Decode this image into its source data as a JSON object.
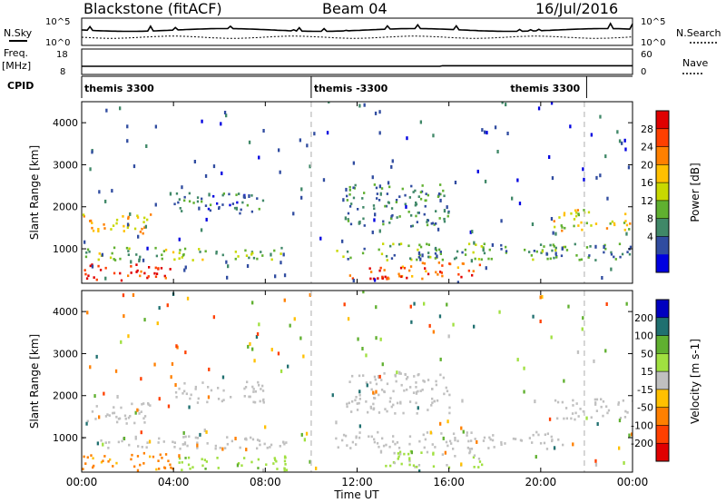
{
  "header": {
    "station": "Blackstone (fitACF)",
    "beam": "Beam 04",
    "date": "16/Jul/2016"
  },
  "summary_panels": {
    "nsky_label": "N.Sky",
    "nsearch_label": "N.Search",
    "freq_label": "Freq.",
    "freq_unit": "[MHz]",
    "nave_label": "Nave",
    "cpid_label": "CPID",
    "noise_ticks": [
      "10^5",
      "10^0"
    ],
    "freq_ticks": [
      "18",
      "8"
    ],
    "nave_ticks": [
      "60",
      "0"
    ]
  },
  "cpid": [
    {
      "label": "themis 3300",
      "start_h": 0,
      "end_h": 10
    },
    {
      "label": "themis -3300",
      "start_h": 10,
      "end_h": 22
    },
    {
      "label": "themis 3300",
      "start_h": 22,
      "end_h": 24
    }
  ],
  "x_axis": {
    "title": "Time UT",
    "ticks": [
      "00:00",
      "04:00",
      "08:00",
      "12:00",
      "16:00",
      "20:00",
      "00:00"
    ],
    "tick_hours": [
      0,
      4,
      8,
      12,
      16,
      20,
      24
    ],
    "range_h": [
      0,
      24
    ]
  },
  "y_axis": {
    "title": "Slant Range [km]",
    "ticks": [
      "1000",
      "2000",
      "3000",
      "4000"
    ],
    "tick_values": [
      1000,
      2000,
      3000,
      4000
    ],
    "range_km": [
      180,
      4500
    ]
  },
  "power_scale": {
    "title": "Power [dB]",
    "labels": [
      "28",
      "24",
      "20",
      "16",
      "12",
      "8",
      "4"
    ],
    "colors": [
      "#e00000",
      "#ff4000",
      "#ff8000",
      "#ffc000",
      "#c8d800",
      "#60b030",
      "#408868",
      "#304ca0",
      "#0000e0"
    ]
  },
  "velocity_scale": {
    "title": "Velocity [m s-1]",
    "labels": [
      "200",
      "100",
      "50",
      "15",
      "-15",
      "-50",
      "-100",
      "-200"
    ],
    "colors": [
      "#0000c0",
      "#207070",
      "#60b030",
      "#a0e040",
      "#c0c0c0",
      "#ffc000",
      "#ff8000",
      "#ff4000",
      "#e00000"
    ]
  },
  "chart_data": [
    {
      "type": "heatmap",
      "title": "Power",
      "xlabel": "Time UT",
      "ylabel": "Slant Range [km]",
      "x_range_h": [
        0,
        24
      ],
      "ylim_km": [
        180,
        4500
      ],
      "colorbar_label": "Power [dB]",
      "colorbar_ticks": [
        4,
        8,
        12,
        16,
        20,
        24,
        28
      ],
      "features": [
        {
          "t_start_h": 0.0,
          "t_end_h": 4.0,
          "range_km": [
            200,
            600
          ],
          "dB": 28
        },
        {
          "t_start_h": 0.0,
          "t_end_h": 9.0,
          "range_km": [
            700,
            1000
          ],
          "dB": 14
        },
        {
          "t_start_h": 0.0,
          "t_end_h": 3.0,
          "range_km": [
            1300,
            1800
          ],
          "dB": 20
        },
        {
          "t_start_h": 4.0,
          "t_end_h": 8.0,
          "range_km": [
            1800,
            2300
          ],
          "dB": 8
        },
        {
          "t_start_h": 11.5,
          "t_end_h": 13.5,
          "range_km": [
            250,
            550
          ],
          "dB": 28
        },
        {
          "t_start_h": 13.0,
          "t_end_h": 17.5,
          "range_km": [
            250,
            650
          ],
          "dB": 26
        },
        {
          "t_start_h": 11.0,
          "t_end_h": 21.0,
          "range_km": [
            700,
            1100
          ],
          "dB": 12
        },
        {
          "t_start_h": 11.5,
          "t_end_h": 16.0,
          "range_km": [
            1500,
            2500
          ],
          "dB": 10
        },
        {
          "t_start_h": 20.5,
          "t_end_h": 24.0,
          "range_km": [
            1400,
            1900
          ],
          "dB": 18
        },
        {
          "t_start_h": 20.5,
          "t_end_h": 24.0,
          "range_km": [
            700,
            1100
          ],
          "dB": 10
        }
      ]
    },
    {
      "type": "heatmap",
      "title": "Velocity",
      "xlabel": "Time UT",
      "ylabel": "Slant Range [km]",
      "x_range_h": [
        0,
        24
      ],
      "ylim_km": [
        180,
        4500
      ],
      "colorbar_label": "Velocity [m s-1]",
      "colorbar_ticks": [
        -200,
        -100,
        -50,
        -15,
        15,
        50,
        100,
        200
      ],
      "features": [
        {
          "t_start_h": 0.0,
          "t_end_h": 4.0,
          "range_km": [
            200,
            600
          ],
          "velocity": -60
        },
        {
          "t_start_h": 4.0,
          "t_end_h": 9.0,
          "range_km": [
            200,
            500
          ],
          "velocity": 40
        },
        {
          "t_start_h": 0.0,
          "t_end_h": 9.0,
          "range_km": [
            700,
            1000
          ],
          "velocity": 0
        },
        {
          "t_start_h": 0.0,
          "t_end_h": 3.0,
          "range_km": [
            1300,
            1800
          ],
          "velocity": 0
        },
        {
          "t_start_h": 4.0,
          "t_end_h": 8.0,
          "range_km": [
            1800,
            2300
          ],
          "velocity": 0
        },
        {
          "t_start_h": 11.0,
          "t_end_h": 21.0,
          "range_km": [
            700,
            1100
          ],
          "velocity": 0
        },
        {
          "t_start_h": 13.0,
          "t_end_h": 17.5,
          "range_km": [
            250,
            650
          ],
          "velocity": 20
        },
        {
          "t_start_h": 11.5,
          "t_end_h": 16.0,
          "range_km": [
            1500,
            2500
          ],
          "velocity": 0
        },
        {
          "t_start_h": 20.5,
          "t_end_h": 24.0,
          "range_km": [
            1400,
            1900
          ],
          "velocity": 0
        }
      ]
    }
  ]
}
